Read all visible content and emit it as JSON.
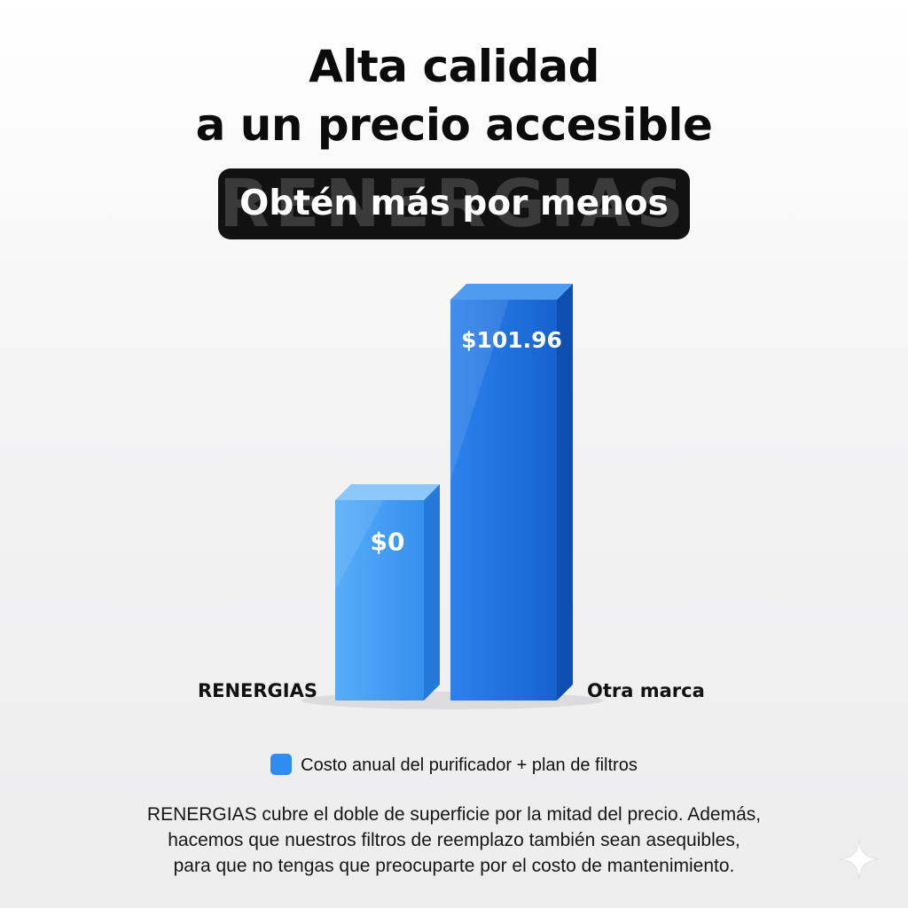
{
  "header": {
    "title_line1": "Alta calidad",
    "title_line2": "a un precio accesible",
    "badge_text": "Obtén más por menos",
    "badge_watermark": "RENERGIAS"
  },
  "chart_data": {
    "type": "bar",
    "categories": [
      "RENERGIAS",
      "Otra marca"
    ],
    "values": [
      0,
      101.96
    ],
    "value_labels": [
      "$0",
      "$101.96"
    ],
    "series": [
      {
        "name": "Costo anual del purificador + plan de filtros",
        "values": [
          0,
          101.96
        ]
      }
    ],
    "legend_position": "bottom",
    "grid": false,
    "colors": {
      "renergias_front": "#3d9bf5",
      "renergias_side": "#2478d8",
      "renergias_top": "#8cc8fb",
      "otra_front": "#1c6fe0",
      "otra_side": "#0c4fb0",
      "otra_top": "#4e9cf2"
    }
  },
  "legend": {
    "label": "Costo anual del purificador + plan de filtros",
    "color": "#2f8cf0"
  },
  "footnote": {
    "line1": "RENERGIAS cubre el doble de superficie por la mitad del precio. Además,",
    "line2": "hacemos que nuestros filtros de reemplazo también sean asequibles,",
    "line3": "para que no tengas que preocuparte por el costo de mantenimiento."
  },
  "icons": {
    "corner": "sparkle-icon"
  }
}
